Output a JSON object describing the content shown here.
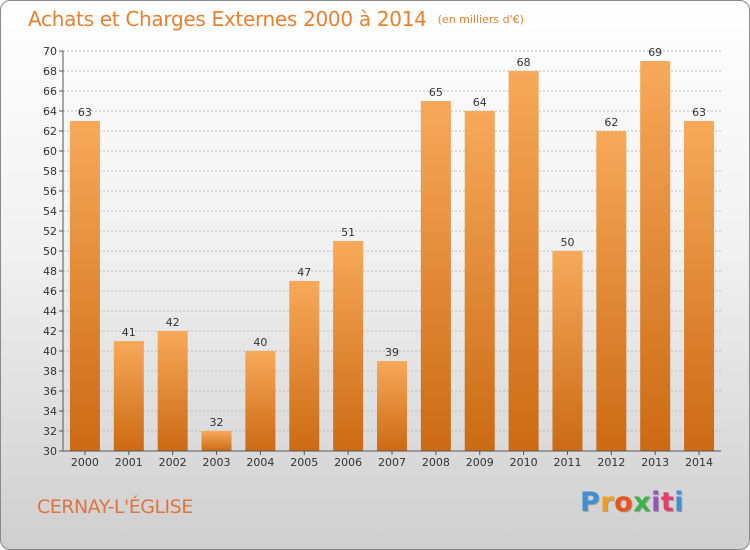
{
  "header": {
    "title": "Achats et Charges Externes 2000 à 2014",
    "subtitle": "(en milliers d'€)"
  },
  "footer": {
    "town": "CERNAY-L'ÉGLISE",
    "logo_letters": [
      "P",
      "r",
      "o",
      "x",
      "i",
      "t",
      "i"
    ]
  },
  "colors": {
    "bar_light": "#f7a95a",
    "bar_dark": "#cc6a14",
    "accent": "#ec7f2c",
    "grid": "#bcbcbc"
  },
  "chart_data": {
    "type": "bar",
    "title": "Achats et Charges Externes 2000 à 2014",
    "subtitle": "(en milliers d'€)",
    "categories": [
      "2000",
      "2001",
      "2002",
      "2003",
      "2004",
      "2005",
      "2006",
      "2007",
      "2008",
      "2009",
      "2010",
      "2011",
      "2012",
      "2013",
      "2014"
    ],
    "values": [
      63,
      41,
      42,
      32,
      40,
      47,
      51,
      39,
      65,
      64,
      68,
      50,
      62,
      69,
      63
    ],
    "data_labels": [
      "63",
      "41",
      "42",
      "32",
      "40",
      "47",
      "51",
      "39",
      "65",
      "64",
      "68",
      "50",
      "62",
      "69",
      "63"
    ],
    "ylim": [
      30,
      70
    ],
    "yticks": [
      "30",
      "32",
      "34",
      "36",
      "38",
      "40",
      "42",
      "44",
      "46",
      "48",
      "50",
      "52",
      "54",
      "56",
      "58",
      "60",
      "62",
      "64",
      "66",
      "68",
      "70"
    ],
    "grid": true,
    "legend": "none"
  }
}
